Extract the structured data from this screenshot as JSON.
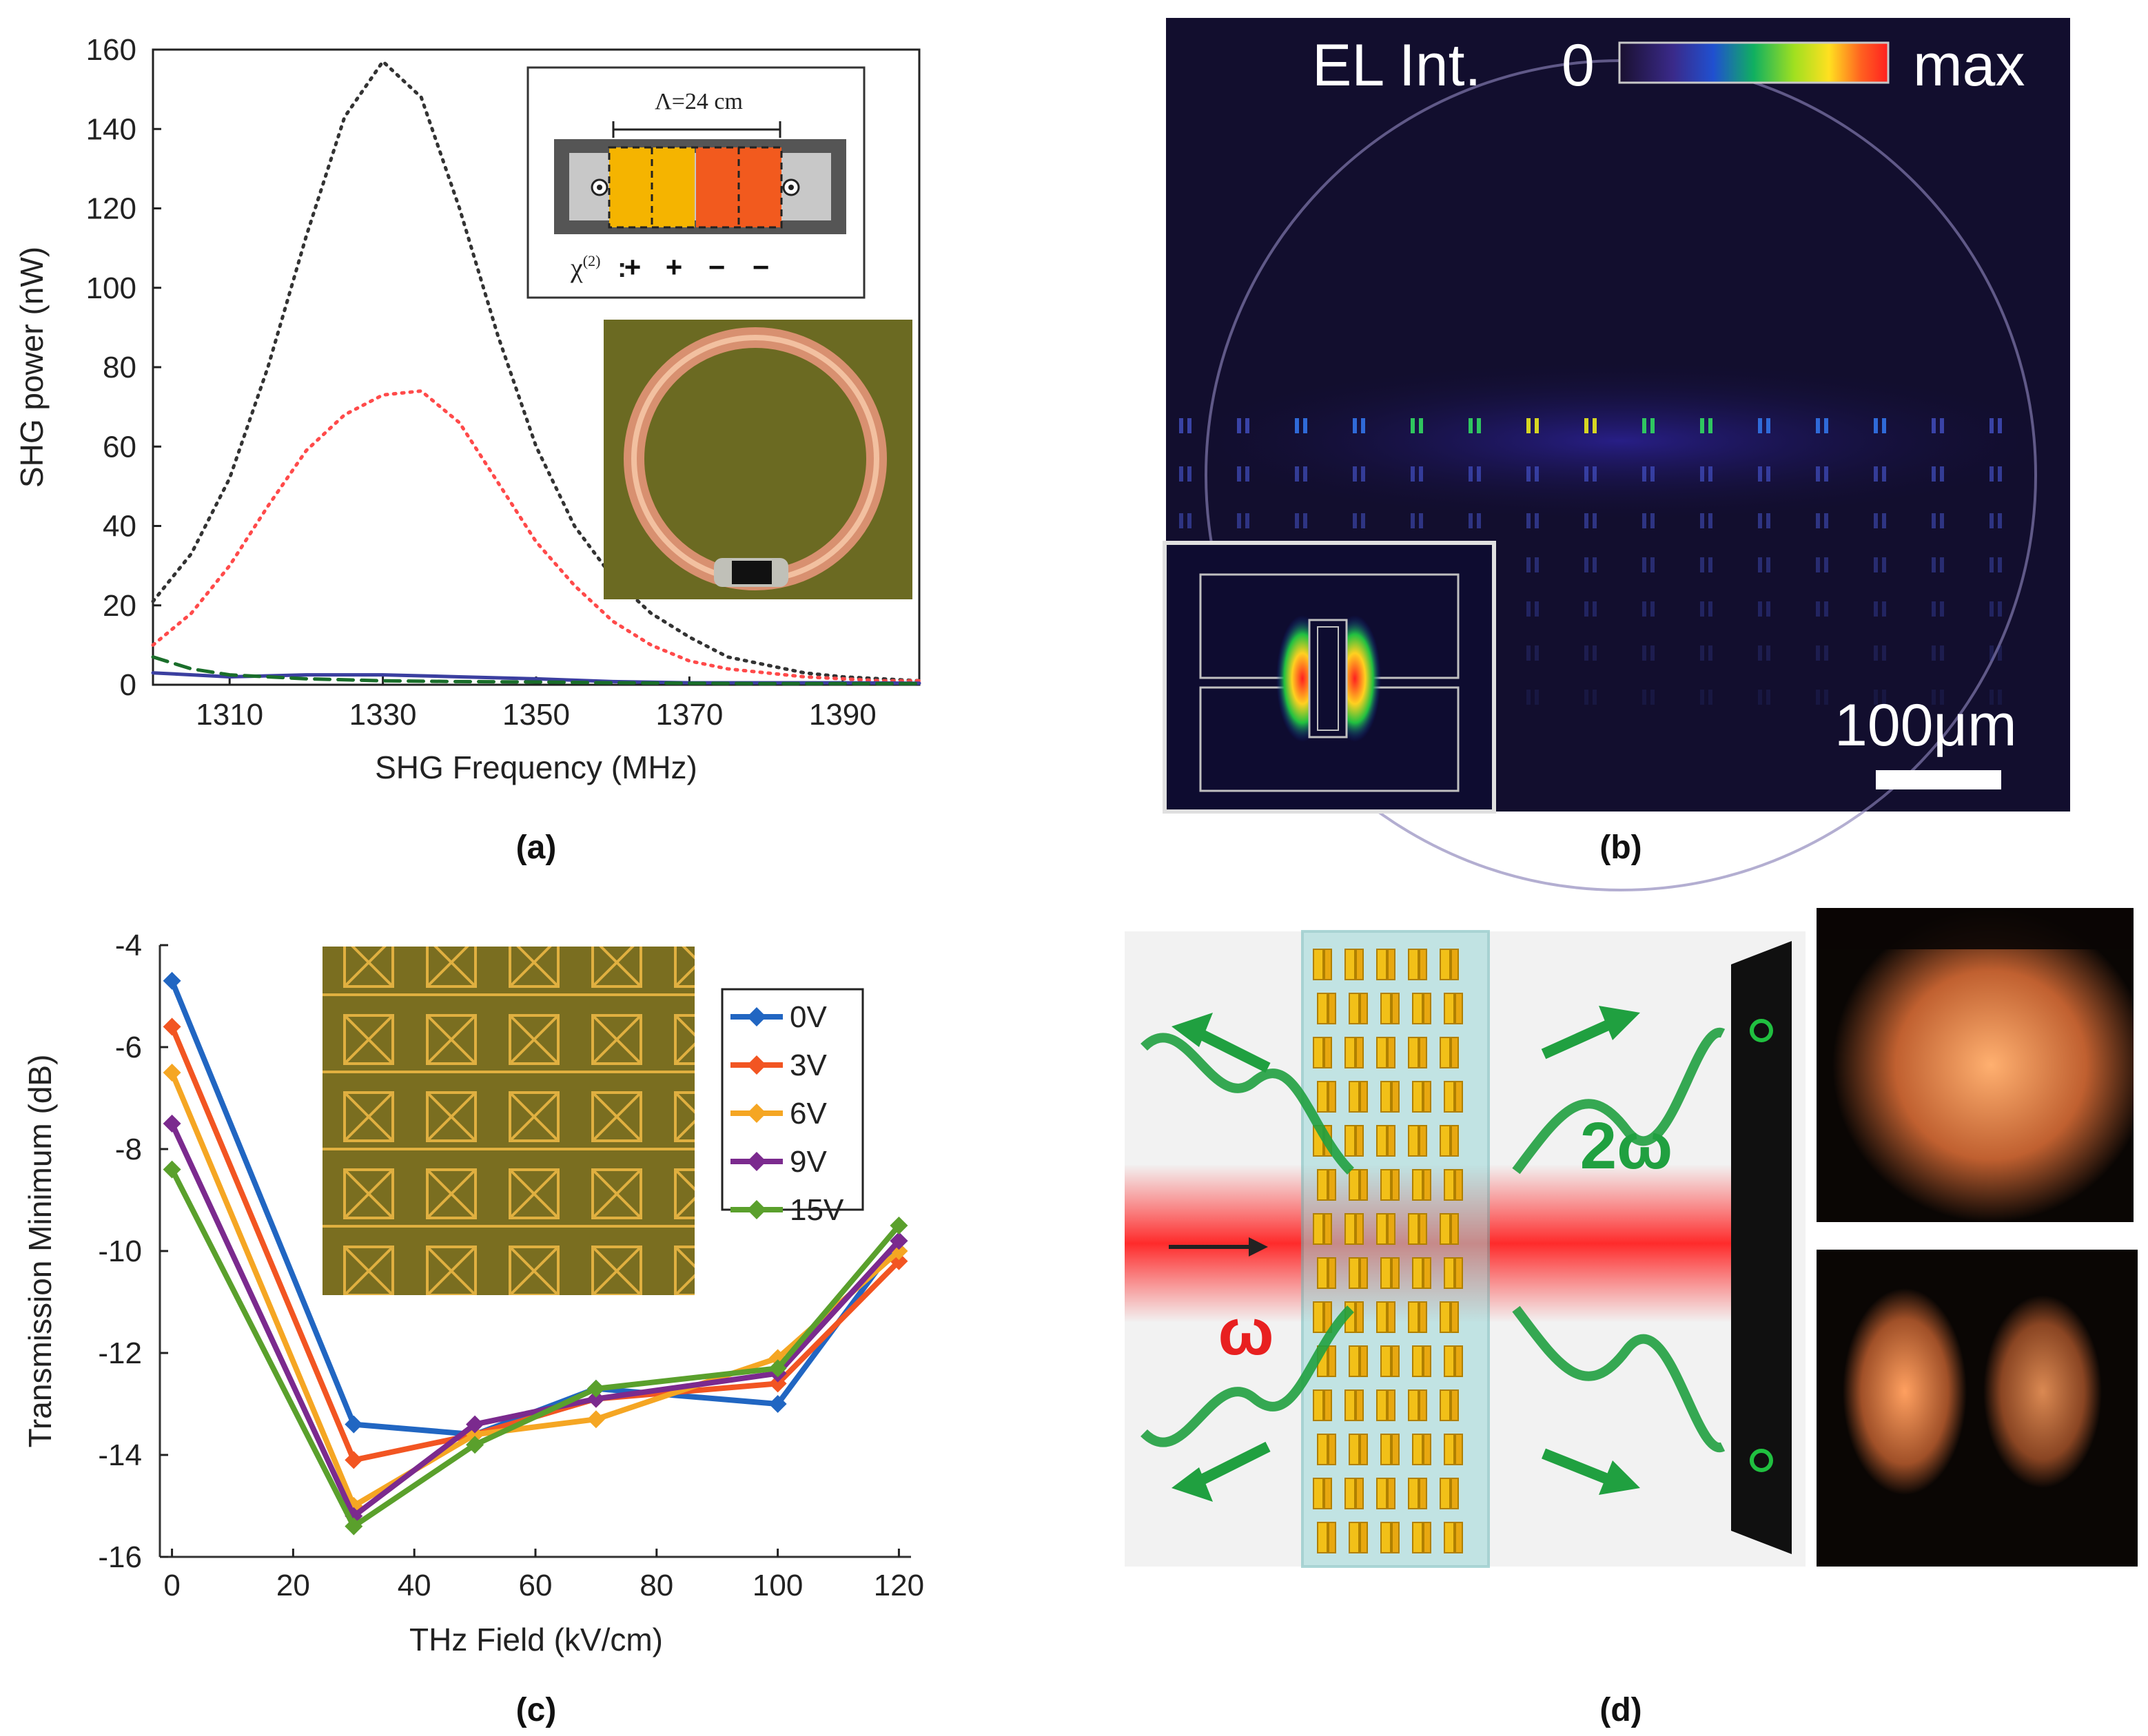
{
  "panel_labels": {
    "a": "(a)",
    "b": "(b)",
    "c": "(c)",
    "d": "(d)"
  },
  "chart_data": [
    {
      "id": "a",
      "type": "line",
      "xlabel": "SHG Frequency (MHz)",
      "ylabel": "SHG power (nW)",
      "xlim": [
        1300,
        1400
      ],
      "ylim": [
        0,
        160
      ],
      "xticks": [
        1310,
        1330,
        1350,
        1370,
        1390
      ],
      "yticks": [
        0,
        20,
        40,
        60,
        80,
        100,
        120,
        140,
        160
      ],
      "series": [
        {
          "name": "black-dotted",
          "style": "dotted",
          "color": "#333333",
          "x": [
            1300,
            1305,
            1310,
            1315,
            1320,
            1325,
            1330,
            1335,
            1340,
            1345,
            1350,
            1355,
            1360,
            1365,
            1370,
            1375,
            1380,
            1385,
            1390,
            1395,
            1400
          ],
          "y": [
            21,
            33,
            52,
            80,
            113,
            143,
            157,
            148,
            120,
            88,
            60,
            40,
            27,
            18,
            12,
            7,
            5,
            3,
            2,
            1.5,
            1
          ]
        },
        {
          "name": "red-dotted",
          "style": "dotted",
          "color": "#ff4a4a",
          "x": [
            1300,
            1305,
            1310,
            1315,
            1320,
            1325,
            1330,
            1335,
            1340,
            1345,
            1350,
            1355,
            1360,
            1365,
            1370,
            1375,
            1380,
            1385,
            1390,
            1395,
            1400
          ],
          "y": [
            10,
            18,
            30,
            45,
            59,
            68,
            73,
            74,
            66,
            51,
            36,
            25,
            16,
            10,
            6,
            4,
            3,
            2,
            1.5,
            1,
            1
          ]
        },
        {
          "name": "blue-solid",
          "style": "solid",
          "color": "#3b3fa0",
          "x": [
            1300,
            1310,
            1320,
            1330,
            1340,
            1350,
            1360,
            1370,
            1380,
            1390,
            1400
          ],
          "y": [
            3,
            2,
            2.5,
            2.5,
            2,
            1.5,
            0.8,
            0.5,
            0.5,
            0.5,
            0.4
          ]
        },
        {
          "name": "green-dashed",
          "style": "dashed",
          "color": "#1a6e2a",
          "x": [
            1300,
            1305,
            1310,
            1320,
            1330,
            1340,
            1350,
            1360,
            1370,
            1380,
            1390,
            1400
          ],
          "y": [
            7,
            4,
            2.5,
            1.5,
            1,
            0.8,
            0.7,
            0.5,
            0.4,
            0.3,
            0.3,
            0.3
          ]
        }
      ],
      "inset": {
        "period_label": "Λ=24  cm",
        "chi_label": "χ",
        "chi_sup": "(2)",
        "signs": [
          "+",
          "+",
          "−",
          "−"
        ]
      }
    },
    {
      "id": "c",
      "type": "line",
      "xlabel": "THz Field (kV/cm)",
      "ylabel": "Transmission Minimum (dB)",
      "xlim": [
        -2,
        122
      ],
      "ylim": [
        -16,
        -4
      ],
      "xticks": [
        0,
        20,
        40,
        60,
        80,
        100,
        120
      ],
      "yticks": [
        -4,
        -6,
        -8,
        -10,
        -12,
        -14,
        -16
      ],
      "x": [
        0,
        30,
        50,
        70,
        100,
        120
      ],
      "series": [
        {
          "name": "0V",
          "color": "#2166c2",
          "values": [
            -4.7,
            -13.4,
            -13.6,
            -12.7,
            -13.0,
            -9.8
          ]
        },
        {
          "name": "3V",
          "color": "#f25522",
          "values": [
            -5.6,
            -14.1,
            -13.6,
            -12.9,
            -12.6,
            -10.2
          ]
        },
        {
          "name": "6V",
          "color": "#f5a623",
          "values": [
            -6.5,
            -15.0,
            -13.6,
            -13.3,
            -12.1,
            -10.0
          ]
        },
        {
          "name": "9V",
          "color": "#7b2a8e",
          "values": [
            -7.5,
            -15.2,
            -13.4,
            -12.9,
            -12.4,
            -9.8
          ]
        },
        {
          "name": "15V",
          "color": "#5aa02c",
          "values": [
            -8.4,
            -15.4,
            -13.8,
            -12.7,
            -12.3,
            -9.5
          ]
        }
      ]
    }
  ],
  "panel_b": {
    "colorbar_label": "EL Int.",
    "colorbar_min": "0",
    "colorbar_max": "max",
    "scale_bar": "100μm"
  },
  "panel_d": {
    "label_omega": "ω",
    "label_2omega": "2ω"
  }
}
